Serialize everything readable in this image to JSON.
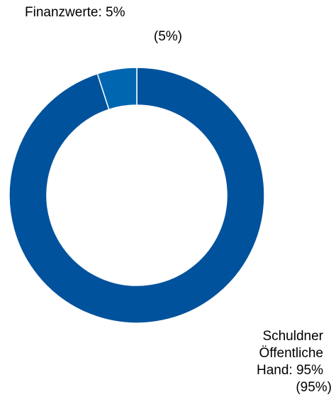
{
  "chart_data": {
    "type": "donut",
    "categories": [
      "Finanzwerte: 5%",
      "Schuldner Öffentliche Hand: 95%"
    ],
    "values": [
      5,
      95
    ],
    "value_labels": [
      "(5%)",
      "(95%)"
    ],
    "colors": [
      "#0066b0",
      "#00529c"
    ]
  }
}
